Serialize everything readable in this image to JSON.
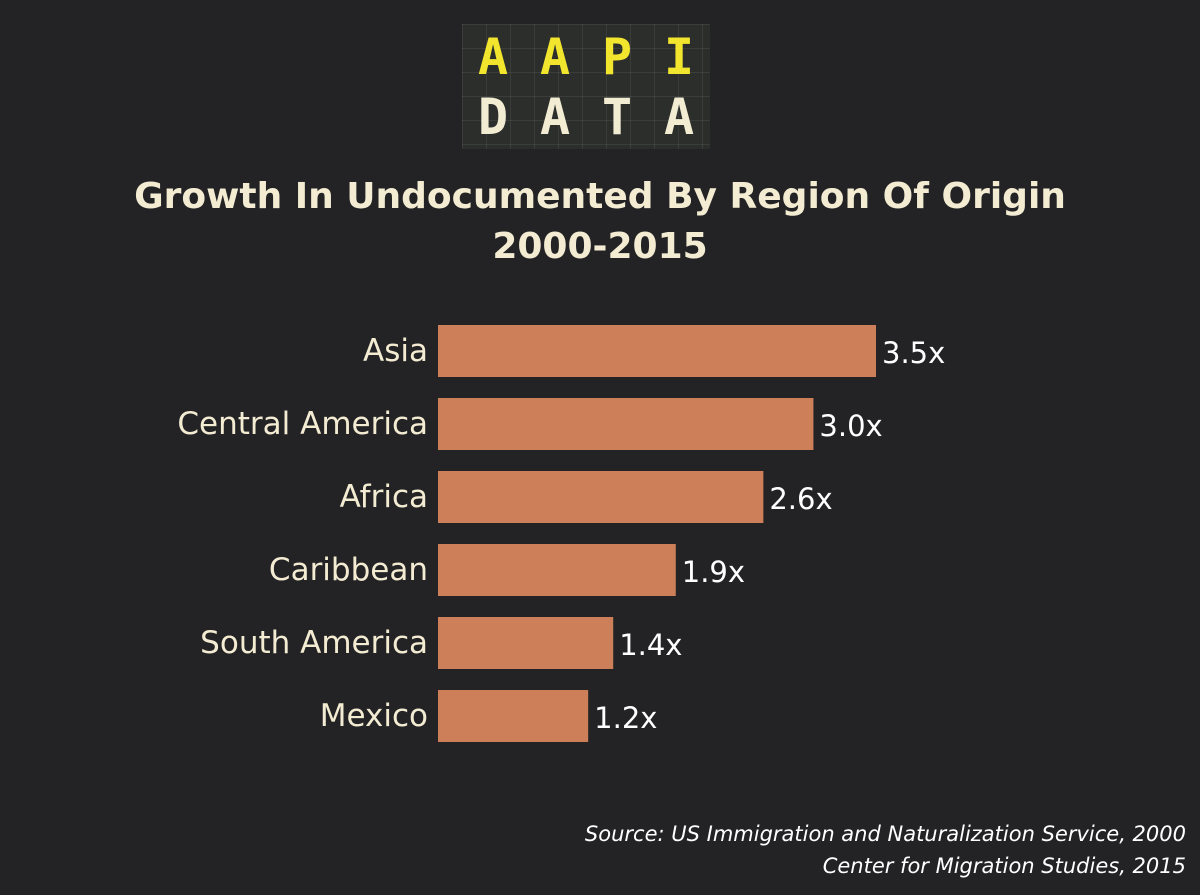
{
  "logo": {
    "row1": [
      "A",
      "A",
      "P",
      "I"
    ],
    "row2": [
      "D",
      "A",
      "T",
      "A"
    ],
    "colors": {
      "row1": "#f2e52d",
      "row2": "#f2ecd2",
      "background": "#2c2e2c"
    }
  },
  "title": {
    "line1": "Growth In Undocumented By Region Of Origin",
    "line2": "2000-2015"
  },
  "chart_data": {
    "type": "bar",
    "orientation": "horizontal",
    "categories": [
      "Asia",
      "Central America",
      "Africa",
      "Caribbean",
      "South America",
      "Mexico"
    ],
    "values": [
      3.5,
      3.0,
      2.6,
      1.9,
      1.4,
      1.2
    ],
    "value_labels": [
      "3.5x",
      "3.0x",
      "2.6x",
      "1.9x",
      "1.4x",
      "1.2x"
    ],
    "xlim": [
      0,
      3.5
    ],
    "grid": false,
    "legend": "none",
    "colors": {
      "bar": "#cc7f58",
      "background": "#232326",
      "text": "#f3ecd2"
    }
  },
  "source": {
    "line1": "Source: US Immigration and Naturalization Service, 2000",
    "line2": "Center for Migration Studies, 2015"
  }
}
